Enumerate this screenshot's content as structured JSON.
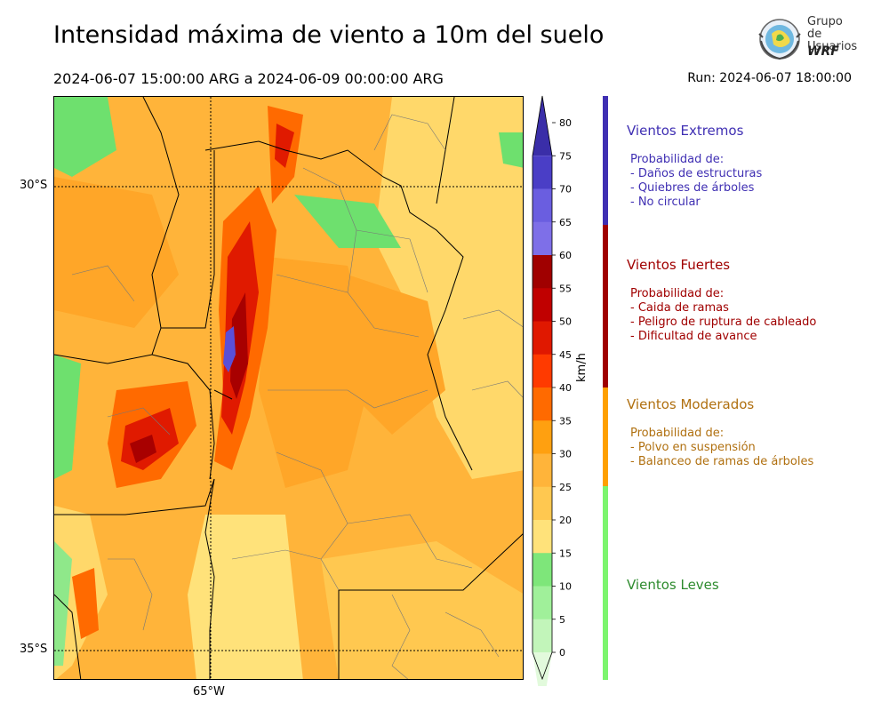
{
  "header": {
    "title": "Intensidad máxima de viento a 10m del suelo",
    "period": "2024-06-07 15:00:00 ARG  a  2024-06-09 00:00:00 ARG",
    "run": "Run: 2024-06-07 18:00:00"
  },
  "logo": {
    "line1": "Grupo de",
    "line2": "Usuarios",
    "line3": "WRF",
    "icon": "globe-logo-icon"
  },
  "map": {
    "lat_labels": [
      "30°S",
      "35°S"
    ],
    "lon_labels": [
      "65°W"
    ],
    "colors": {
      "light_green": "#b8f5b0",
      "green": "#6ee06e",
      "yellow": "#ffe27a",
      "light_orange": "#ffc04a",
      "orange": "#ffa628",
      "dark_orange": "#ff6a00",
      "red": "#e01a00",
      "dark_red": "#a80000",
      "purple": "#5a4fd8"
    }
  },
  "colorbar": {
    "unit": "km/h",
    "ticks": [
      "80",
      "75",
      "70",
      "65",
      "60",
      "55",
      "50",
      "45",
      "40",
      "35",
      "30",
      "25",
      "20",
      "15",
      "10",
      "5",
      "0"
    ],
    "bands": [
      "#3a2ea8",
      "#4a3ec6",
      "#6a5ee0",
      "#7e6fe8",
      "#a00000",
      "#c00000",
      "#e01800",
      "#ff3a00",
      "#ff6a00",
      "#ffa010",
      "#ffb43a",
      "#ffc850",
      "#ffe27a",
      "#7ee67a",
      "#a0f09a",
      "#c2f5ba",
      "#e2fadc"
    ]
  },
  "categories": [
    {
      "title": "Vientos Extremos",
      "color": "#3f2fb3",
      "heading": "Probabilidad de:",
      "items": [
        "- Daños de estructuras",
        "- Quiebres de árboles",
        "- No circular"
      ]
    },
    {
      "title": "Vientos Fuertes",
      "color": "#a00000",
      "heading": "Probabilidad de:",
      "items": [
        "- Caida de ramas",
        "- Peligro de ruptura de cableado",
        "- Dificultad de avance"
      ]
    },
    {
      "title": "Vientos Moderados",
      "color": "#b07010",
      "bar_color": "#ffa000",
      "heading": "Probabilidad de:",
      "items": [
        "- Polvo en suspensión",
        "- Balanceo de ramas de árboles"
      ]
    },
    {
      "title": "Vientos Leves",
      "color": "#2e8b2e",
      "bar_color": "#7cf56e"
    }
  ]
}
